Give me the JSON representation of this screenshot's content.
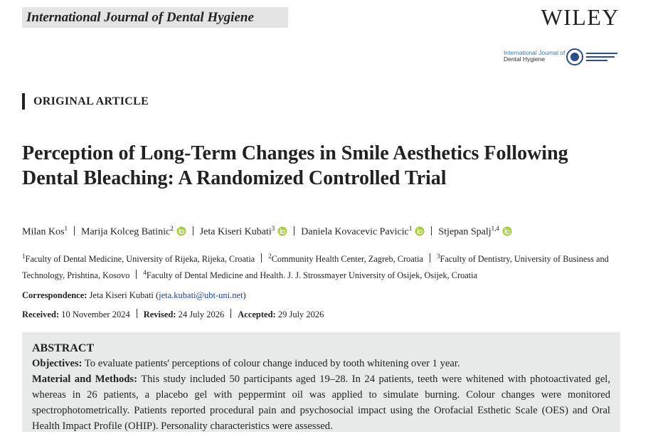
{
  "header": {
    "journal": "International Journal of Dental Hygiene",
    "publisher": "WILEY",
    "logo_line1": "International Journal of",
    "logo_line2": "Dental Hygiene"
  },
  "article_type": "ORIGINAL ARTICLE",
  "title": "Perception of Long-Term Changes in Smile Aesthetics Following Dental Bleaching: A Randomized Controlled Trial",
  "authors": [
    {
      "name": "Milan Kos",
      "sup": "1",
      "orcid": false
    },
    {
      "name": "Marija Kolceg Batinic",
      "sup": "2",
      "orcid": true
    },
    {
      "name": "Jeta Kiseri Kubati",
      "sup": "3",
      "orcid": true
    },
    {
      "name": "Daniela Kovacevic Pavicic",
      "sup": "1",
      "orcid": true
    },
    {
      "name": "Stjepan Spalj",
      "sup": "1,4",
      "orcid": true
    }
  ],
  "affiliations": [
    {
      "num": "1",
      "text": "Faculty of Dental Medicine, University of Rijeka, Rijeka, Croatia"
    },
    {
      "num": "2",
      "text": "Community Health Center, Zagreb, Croatia"
    },
    {
      "num": "3",
      "text": "Faculty of Dentistry, University of Business and Technology, Prishtina, Kosovo"
    },
    {
      "num": "4",
      "text": "Faculty of Dental Medicine and Health. J. J. Strossmayer University of Osijek, Osijek, Croatia"
    }
  ],
  "correspondence": {
    "label": "Correspondence:",
    "name": "Jeta Kiseri Kubati (",
    "email": "jeta.kubati@ubt-uni.net",
    "close": ")"
  },
  "dates": [
    {
      "label": "Received:",
      "value": "10 November 2024"
    },
    {
      "label": "Revised:",
      "value": "24 July 2026"
    },
    {
      "label": "Accepted:",
      "value": "29 July 2026"
    }
  ],
  "abstract": {
    "heading": "ABSTRACT",
    "sections": [
      {
        "label": "Objectives:",
        "text": "To evaluate patients' perceptions of colour change induced by tooth whitening over 1 year."
      },
      {
        "label": "Material and Methods:",
        "text": "This study included 50 participants aged 19–28. In 24 patients, teeth were whitened with photoactivated gel, whereas in 26 patients, a placebo gel with peppermint oil was applied to simulate burning. Colour changes were monitored spectrophotometrically. Patients reported procedural pain and psychosocial impact using the Orofacial Esthetic Scale (OES) and Oral Health Impact Profile (OHIP). Personality characteristics were assessed."
      }
    ]
  }
}
